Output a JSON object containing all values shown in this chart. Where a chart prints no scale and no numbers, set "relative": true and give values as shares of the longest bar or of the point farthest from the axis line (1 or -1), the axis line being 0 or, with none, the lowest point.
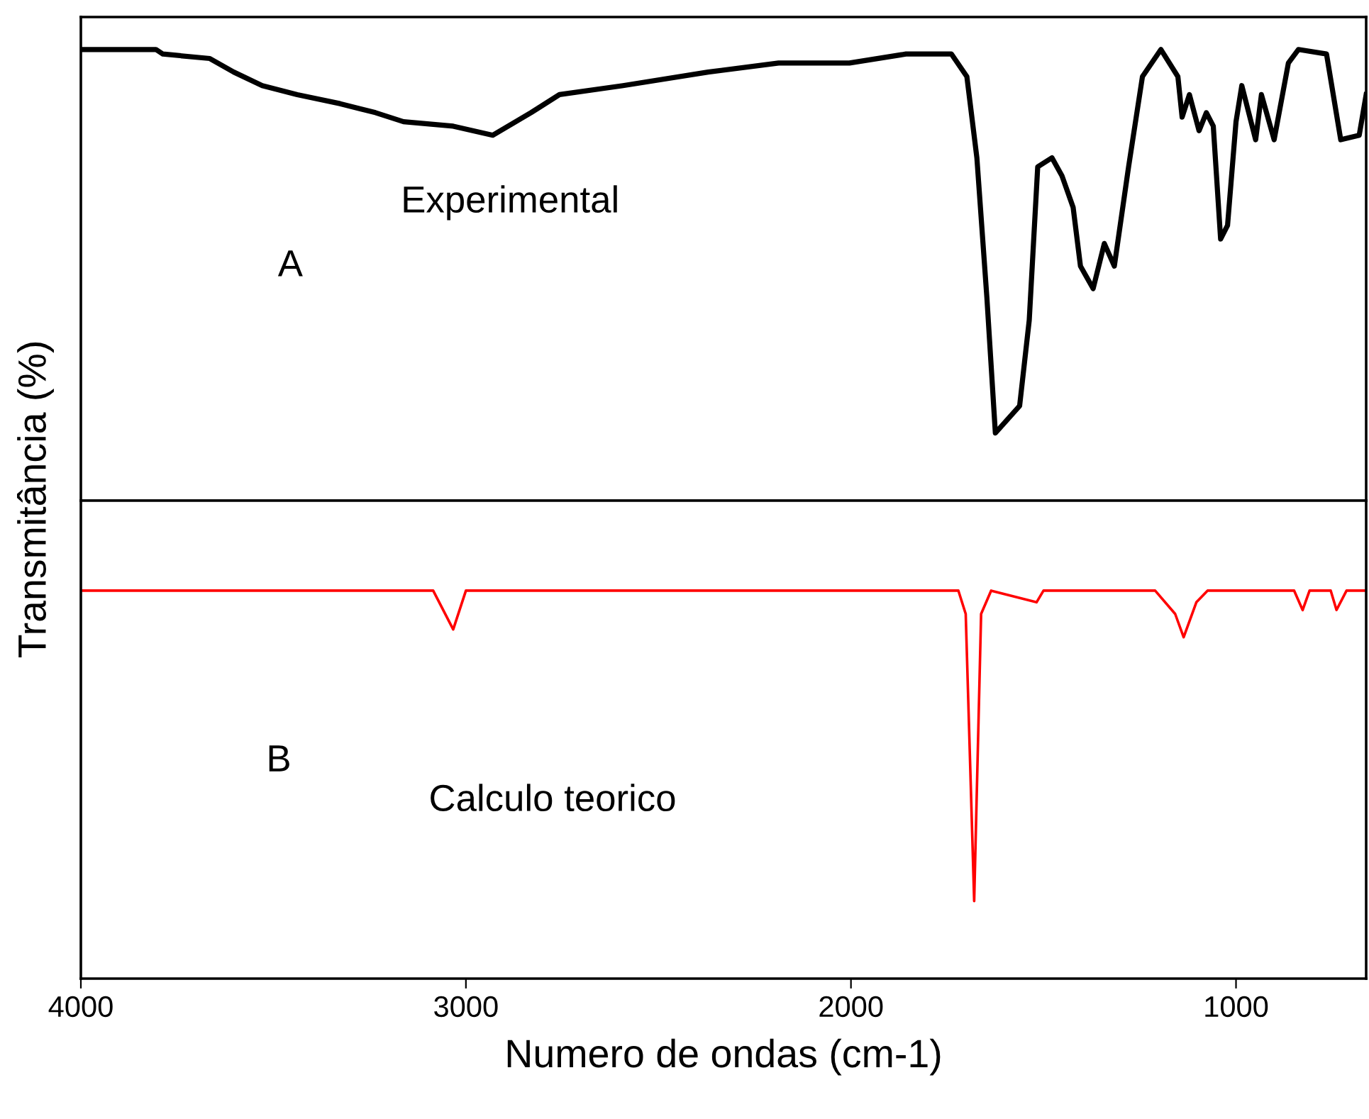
{
  "chart_data": [
    {
      "type": "line",
      "relative": true,
      "ylabel": "Transmitância (%)",
      "xlim": [
        4000,
        662
      ],
      "tick_labels": false,
      "annotations": [
        "Experimental",
        "A"
      ],
      "series": [
        {
          "color": "#000000",
          "x": [
            4000,
            3805,
            3787,
            3665,
            3603,
            3529,
            3438,
            3327,
            3235,
            3162,
            3033,
            2930,
            2831,
            2757,
            2592,
            2371,
            2188,
            2004,
            1857,
            1739,
            1699,
            1673,
            1647,
            1625,
            1562,
            1537,
            1515,
            1478,
            1452,
            1423,
            1404,
            1371,
            1342,
            1316,
            1279,
            1243,
            1195,
            1151,
            1140,
            1121,
            1096,
            1077,
            1059,
            1040,
            1022,
            1000,
            985,
            949,
            934,
            901,
            864,
            838,
            765,
            728,
            680,
            662
          ],
          "values": [
            1.0,
            1.0,
            0.99,
            0.98,
            0.95,
            0.92,
            0.9,
            0.88,
            0.86,
            0.84,
            0.83,
            0.81,
            0.86,
            0.9,
            0.92,
            0.95,
            0.97,
            0.97,
            0.99,
            0.99,
            0.94,
            0.76,
            0.45,
            0.15,
            0.21,
            0.4,
            0.74,
            0.76,
            0.72,
            0.65,
            0.52,
            0.47,
            0.57,
            0.52,
            0.74,
            0.94,
            1.0,
            0.94,
            0.85,
            0.9,
            0.82,
            0.86,
            0.83,
            0.58,
            0.61,
            0.84,
            0.92,
            0.8,
            0.9,
            0.8,
            0.97,
            1.0,
            0.99,
            0.8,
            0.81,
            0.9
          ]
        }
      ]
    },
    {
      "type": "line",
      "relative": true,
      "xlabel": "Numero de ondas (cm-1)",
      "xlim": [
        4000,
        662
      ],
      "xticks": [
        4000,
        3000,
        2000,
        1000
      ],
      "tick_labels": "x",
      "annotations": [
        "B",
        "Calculo teorico"
      ],
      "series": [
        {
          "color": "#ff0000",
          "x": [
            4000,
            3191,
            3085,
            3033,
            3000,
            1721,
            1702,
            1680,
            1662,
            1636,
            1518,
            1500,
            1210,
            1158,
            1136,
            1103,
            1074,
            849,
            827,
            809,
            754,
            739,
            713,
            662
          ],
          "values": [
            1,
            1,
            1,
            0.9,
            1,
            1,
            0.94,
            0.2,
            0.94,
            1,
            0.97,
            1,
            1,
            0.94,
            0.88,
            0.97,
            1,
            1,
            0.95,
            1,
            1,
            0.95,
            1,
            1
          ]
        }
      ]
    }
  ]
}
